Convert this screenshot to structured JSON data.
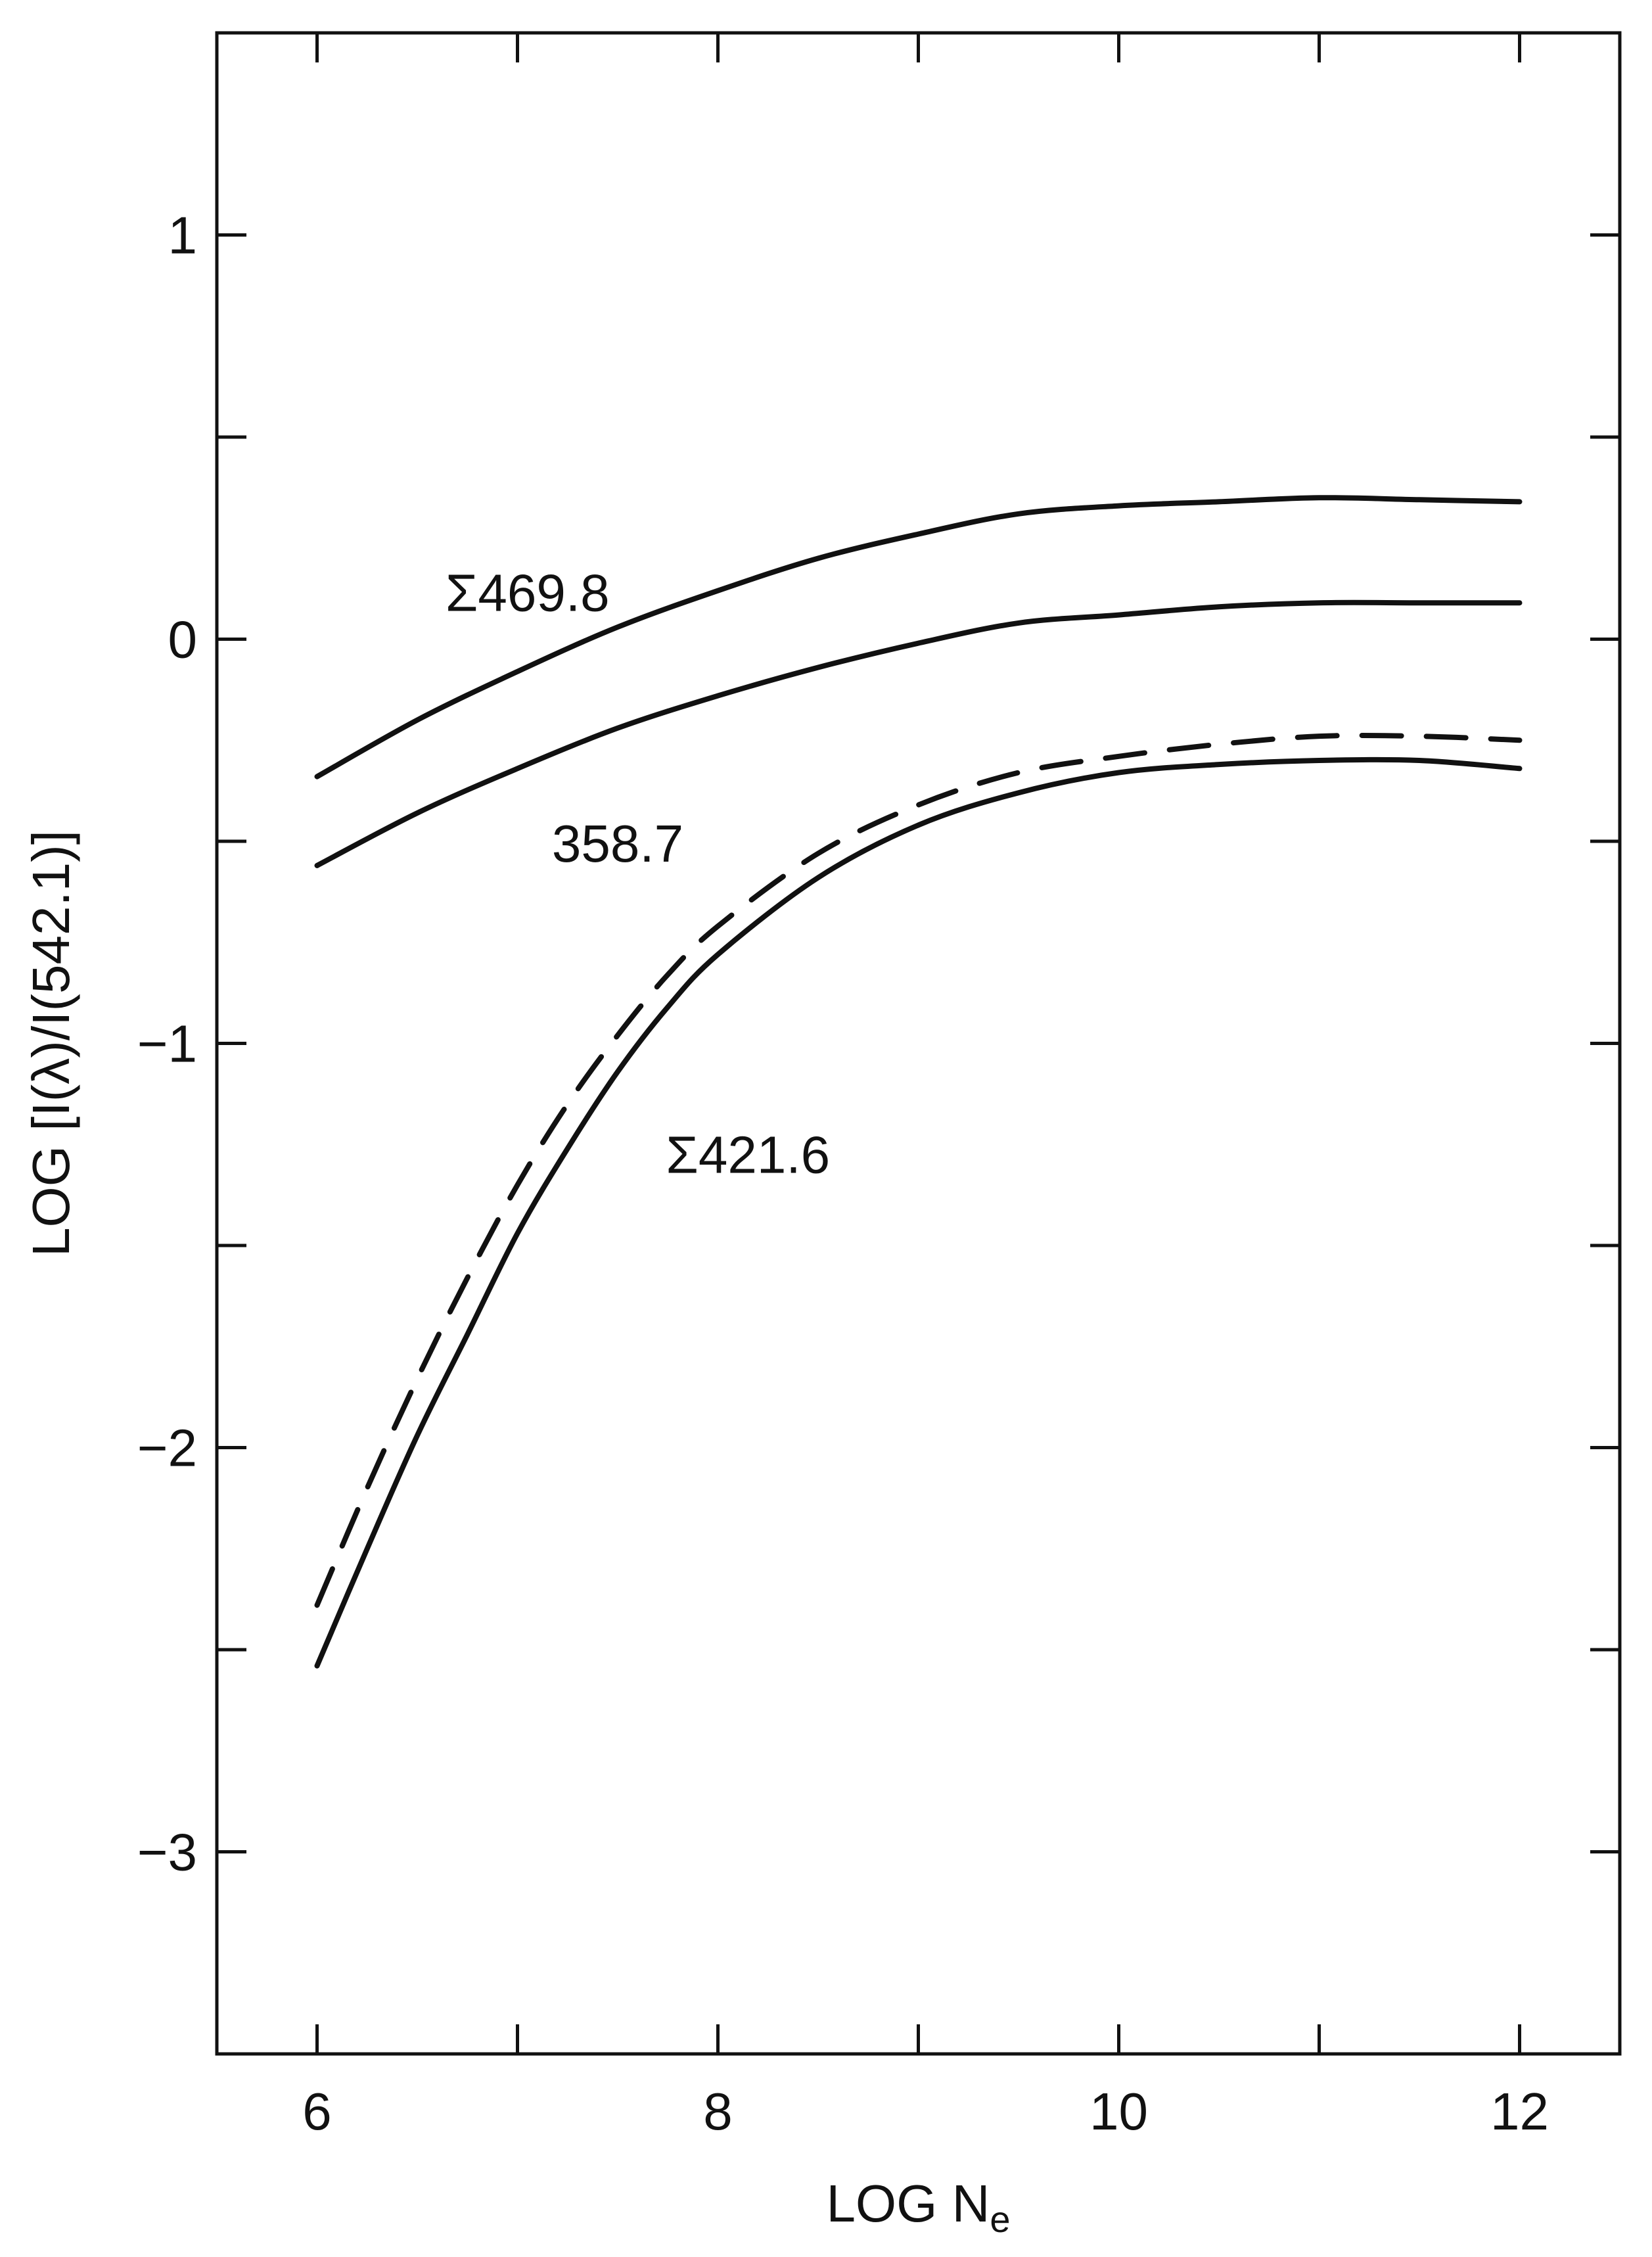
{
  "chart_data": {
    "type": "line",
    "xlabel": "LOG N",
    "xlabel_subscript": "e",
    "ylabel": "LOG [I(λ)/I(542.1)]",
    "xlim": [
      5.5,
      12.5
    ],
    "ylim": [
      -3.5,
      1.5
    ],
    "x_ticks": [
      6,
      7,
      8,
      9,
      10,
      11,
      12
    ],
    "x_tick_labels": [
      {
        "value": 6,
        "label": "6"
      },
      {
        "value": 8,
        "label": "8"
      },
      {
        "value": 10,
        "label": "10"
      },
      {
        "value": 12,
        "label": "12"
      }
    ],
    "y_ticks": [
      -3.5,
      -3,
      -2.5,
      -2,
      -1.5,
      -1,
      -0.5,
      0,
      0.5,
      1,
      1.5
    ],
    "y_tick_labels": [
      {
        "value": 1,
        "label": "1"
      },
      {
        "value": 0,
        "label": "0"
      },
      {
        "value": -1,
        "label": "−1"
      },
      {
        "value": -2,
        "label": "−2"
      },
      {
        "value": -3,
        "label": "−3"
      }
    ],
    "grid": false,
    "ticks_on_all_sides": true,
    "series": [
      {
        "name": "Σ469.8",
        "style": "solid",
        "label_anchor": {
          "x": 7.05,
          "y": 0.07
        },
        "points": [
          {
            "x": 6.0,
            "y": -0.34
          },
          {
            "x": 6.5,
            "y": -0.2
          },
          {
            "x": 7.0,
            "y": -0.08
          },
          {
            "x": 7.5,
            "y": 0.03
          },
          {
            "x": 8.0,
            "y": 0.12
          },
          {
            "x": 8.5,
            "y": 0.2
          },
          {
            "x": 9.0,
            "y": 0.26
          },
          {
            "x": 9.5,
            "y": 0.31
          },
          {
            "x": 10.0,
            "y": 0.33
          },
          {
            "x": 10.5,
            "y": 0.34
          },
          {
            "x": 11.0,
            "y": 0.35
          },
          {
            "x": 11.5,
            "y": 0.345
          },
          {
            "x": 12.0,
            "y": 0.34
          }
        ]
      },
      {
        "name": "358.7",
        "style": "solid",
        "label_anchor": {
          "x": 7.5,
          "y": -0.55
        },
        "points": [
          {
            "x": 6.0,
            "y": -0.56
          },
          {
            "x": 6.5,
            "y": -0.43
          },
          {
            "x": 7.0,
            "y": -0.32
          },
          {
            "x": 7.5,
            "y": -0.22
          },
          {
            "x": 8.0,
            "y": -0.14
          },
          {
            "x": 8.5,
            "y": -0.07
          },
          {
            "x": 9.0,
            "y": -0.01
          },
          {
            "x": 9.5,
            "y": 0.04
          },
          {
            "x": 10.0,
            "y": 0.06
          },
          {
            "x": 10.5,
            "y": 0.08
          },
          {
            "x": 11.0,
            "y": 0.09
          },
          {
            "x": 11.5,
            "y": 0.09
          },
          {
            "x": 12.0,
            "y": 0.09
          }
        ]
      },
      {
        "name": "Σ421.6",
        "style": "solid",
        "label_anchor": {
          "x": 8.15,
          "y": -1.32
        },
        "points": [
          {
            "x": 6.0,
            "y": -2.54
          },
          {
            "x": 6.25,
            "y": -2.25
          },
          {
            "x": 6.5,
            "y": -1.97
          },
          {
            "x": 6.75,
            "y": -1.72
          },
          {
            "x": 7.0,
            "y": -1.47
          },
          {
            "x": 7.25,
            "y": -1.26
          },
          {
            "x": 7.5,
            "y": -1.07
          },
          {
            "x": 7.75,
            "y": -0.91
          },
          {
            "x": 8.0,
            "y": -0.78
          },
          {
            "x": 8.5,
            "y": -0.59
          },
          {
            "x": 9.0,
            "y": -0.46
          },
          {
            "x": 9.5,
            "y": -0.38
          },
          {
            "x": 10.0,
            "y": -0.33
          },
          {
            "x": 10.5,
            "y": -0.31
          },
          {
            "x": 11.0,
            "y": -0.3
          },
          {
            "x": 11.5,
            "y": -0.3
          },
          {
            "x": 12.0,
            "y": -0.32
          }
        ]
      },
      {
        "style": "dashed",
        "points": [
          {
            "x": 6.0,
            "y": -2.39
          },
          {
            "x": 6.25,
            "y": -2.1
          },
          {
            "x": 6.5,
            "y": -1.83
          },
          {
            "x": 6.75,
            "y": -1.58
          },
          {
            "x": 7.0,
            "y": -1.35
          },
          {
            "x": 7.25,
            "y": -1.15
          },
          {
            "x": 7.5,
            "y": -0.98
          },
          {
            "x": 7.75,
            "y": -0.83
          },
          {
            "x": 8.0,
            "y": -0.71
          },
          {
            "x": 8.5,
            "y": -0.53
          },
          {
            "x": 9.0,
            "y": -0.41
          },
          {
            "x": 9.5,
            "y": -0.33
          },
          {
            "x": 10.0,
            "y": -0.29
          },
          {
            "x": 10.5,
            "y": -0.26
          },
          {
            "x": 11.0,
            "y": -0.24
          },
          {
            "x": 11.5,
            "y": -0.24
          },
          {
            "x": 12.0,
            "y": -0.25
          }
        ]
      }
    ]
  }
}
